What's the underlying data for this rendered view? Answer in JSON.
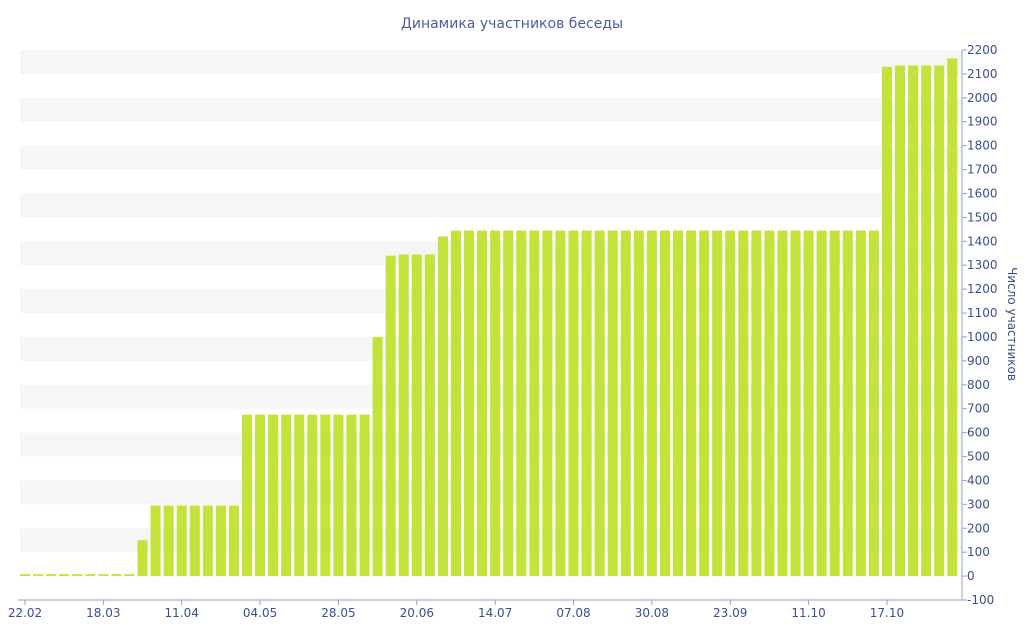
{
  "chart_data": {
    "type": "bar",
    "title": "Динамика участников беседы",
    "xlabel": "",
    "ylabel": "Число участников",
    "ylim": [
      -100,
      2200
    ],
    "yticks": [
      -100,
      0,
      100,
      200,
      300,
      400,
      500,
      600,
      700,
      800,
      900,
      1000,
      1100,
      1200,
      1300,
      1400,
      1500,
      1600,
      1700,
      1800,
      1900,
      2000,
      2100,
      2200
    ],
    "y_axis_position": "right",
    "x_tick_labels": [
      "22.02",
      "18.03",
      "11.04",
      "04.05",
      "28.05",
      "20.06",
      "14.07",
      "07.08",
      "30.08",
      "23.09",
      "11.10",
      "17.10"
    ],
    "x_tick_bar_index": [
      0,
      6,
      12,
      18,
      24,
      30,
      36,
      42,
      48,
      54,
      60,
      66
    ],
    "grid": "alternating horizontal bands",
    "bar_color": "#c3e23a",
    "band_color": "#f6f6f6",
    "text_color": "#3b4f8c",
    "values": [
      8,
      8,
      8,
      8,
      8,
      8,
      8,
      8,
      8,
      150,
      295,
      295,
      295,
      295,
      295,
      295,
      295,
      675,
      675,
      675,
      675,
      675,
      675,
      675,
      675,
      675,
      675,
      1000,
      1340,
      1345,
      1345,
      1345,
      1420,
      1445,
      1445,
      1445,
      1445,
      1445,
      1445,
      1445,
      1445,
      1445,
      1445,
      1445,
      1445,
      1445,
      1445,
      1445,
      1445,
      1445,
      1445,
      1445,
      1445,
      1445,
      1445,
      1445,
      1445,
      1445,
      1445,
      1445,
      1445,
      1445,
      1445,
      1445,
      1445,
      1445,
      2130,
      2135,
      2135,
      2135,
      2135,
      2165
    ]
  }
}
